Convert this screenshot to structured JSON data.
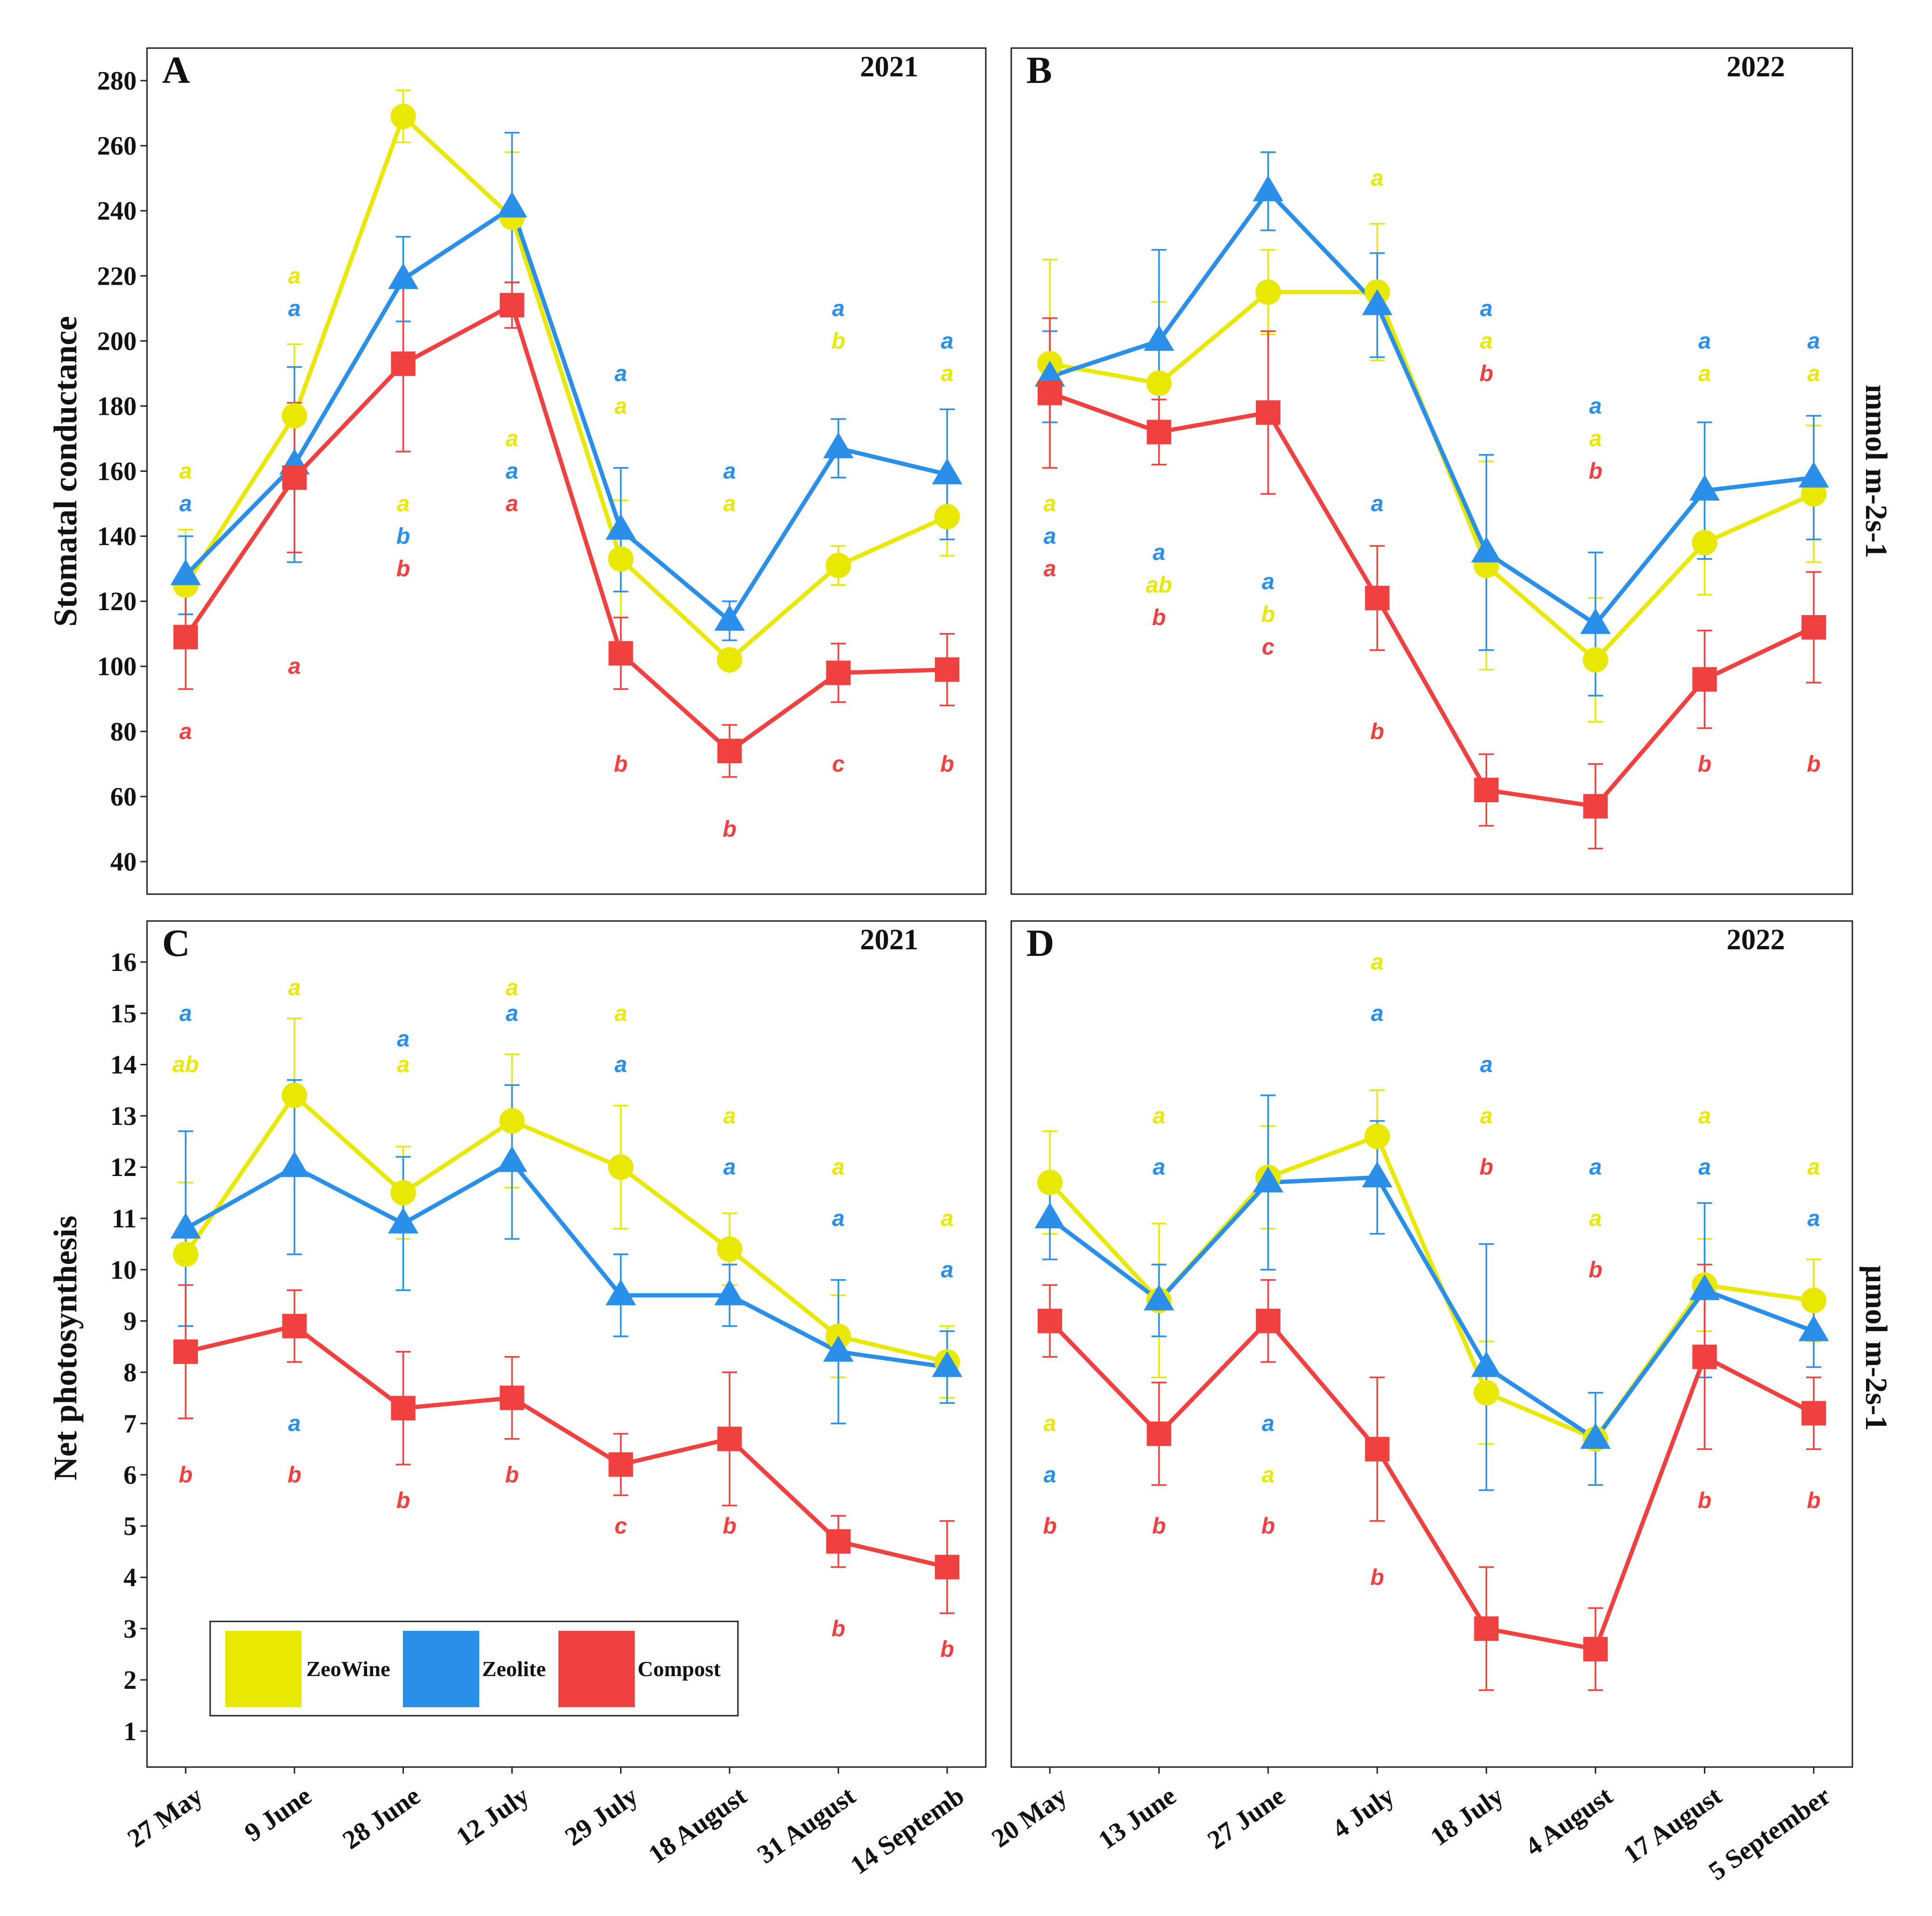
{
  "colors": {
    "ZeoWine": "#e8e800",
    "Zeolite": "#2a8fe8",
    "Compost": "#f04040"
  },
  "legend": [
    {
      "name": "ZeoWine",
      "color": "#e8e800"
    },
    {
      "name": "Zeolite",
      "color": "#2a8fe8"
    },
    {
      "name": "Compost",
      "color": "#f04040"
    }
  ],
  "labels": {
    "gs_ylabel": "Stomatal conductance",
    "gs_unit": "mmol m-2s-1",
    "pn_ylabel": "Net photosynthesis",
    "pn_unit": "µmol m-2s-1"
  },
  "chart_data": [
    {
      "type": "line",
      "panel": "A",
      "year": "2021",
      "categories": [
        "27 May",
        "9 June",
        "28 June",
        "12 July",
        "29 July",
        "18 August",
        "31 August",
        "14 Septemb"
      ],
      "ylim": [
        30,
        290
      ],
      "yticks": [
        40,
        60,
        80,
        100,
        120,
        140,
        160,
        180,
        200,
        220,
        240,
        260,
        280
      ],
      "series": [
        {
          "name": "ZeoWine",
          "values": [
            125,
            177,
            269,
            238,
            133,
            102,
            131,
            146
          ],
          "err": [
            17,
            22,
            8,
            20,
            18,
            3,
            6,
            12
          ]
        },
        {
          "name": "Zeolite",
          "values": [
            128,
            162,
            219,
            241,
            142,
            114,
            167,
            159
          ],
          "err": [
            12,
            30,
            13,
            23,
            19,
            6,
            9,
            20
          ]
        },
        {
          "name": "Compost",
          "values": [
            109,
            158,
            193,
            211,
            104,
            74,
            98,
            99
          ],
          "err": [
            16,
            23,
            27,
            7,
            11,
            8,
            9,
            11
          ]
        }
      ],
      "letters": [
        {
          "x": 0,
          "y": 160,
          "text": "a",
          "series": "ZeoWine"
        },
        {
          "x": 0,
          "y": 150,
          "text": "a",
          "series": "Zeolite"
        },
        {
          "x": 0,
          "y": 80,
          "text": "a",
          "series": "Compost"
        },
        {
          "x": 1,
          "y": 220,
          "text": "a",
          "series": "ZeoWine"
        },
        {
          "x": 1,
          "y": 210,
          "text": "a",
          "series": "Zeolite"
        },
        {
          "x": 1,
          "y": 100,
          "text": "a",
          "series": "Compost"
        },
        {
          "x": 2,
          "y": 150,
          "text": "a",
          "series": "ZeoWine"
        },
        {
          "x": 2,
          "y": 140,
          "text": "b",
          "series": "Zeolite"
        },
        {
          "x": 2,
          "y": 130,
          "text": "b",
          "series": "Compost"
        },
        {
          "x": 3,
          "y": 170,
          "text": "a",
          "series": "ZeoWine"
        },
        {
          "x": 3,
          "y": 160,
          "text": "a",
          "series": "Zeolite"
        },
        {
          "x": 3,
          "y": 150,
          "text": "a",
          "series": "Compost"
        },
        {
          "x": 4,
          "y": 180,
          "text": "a",
          "series": "ZeoWine"
        },
        {
          "x": 4,
          "y": 190,
          "text": "a",
          "series": "Zeolite"
        },
        {
          "x": 4,
          "y": 70,
          "text": "b",
          "series": "Compost"
        },
        {
          "x": 5,
          "y": 150,
          "text": "a",
          "series": "ZeoWine"
        },
        {
          "x": 5,
          "y": 160,
          "text": "a",
          "series": "Zeolite"
        },
        {
          "x": 5,
          "y": 50,
          "text": "b",
          "series": "Compost"
        },
        {
          "x": 6,
          "y": 200,
          "text": "b",
          "series": "ZeoWine"
        },
        {
          "x": 6,
          "y": 210,
          "text": "a",
          "series": "Zeolite"
        },
        {
          "x": 6,
          "y": 70,
          "text": "c",
          "series": "Compost"
        },
        {
          "x": 7,
          "y": 190,
          "text": "a",
          "series": "ZeoWine"
        },
        {
          "x": 7,
          "y": 200,
          "text": "a",
          "series": "Zeolite"
        },
        {
          "x": 7,
          "y": 70,
          "text": "b",
          "series": "Compost"
        }
      ]
    },
    {
      "type": "line",
      "panel": "B",
      "year": "2022",
      "categories": [
        "20 May",
        "13 June",
        "27 June",
        "4 July",
        "18 July",
        "4 August",
        "17 August",
        "5 September"
      ],
      "ylim": [
        30,
        290
      ],
      "yticks": [],
      "series": [
        {
          "name": "ZeoWine",
          "values": [
            193,
            187,
            215,
            215,
            131,
            102,
            138,
            153
          ],
          "err": [
            32,
            25,
            13,
            21,
            32,
            19,
            16,
            21
          ]
        },
        {
          "name": "Zeolite",
          "values": [
            189,
            200,
            246,
            211,
            135,
            113,
            154,
            158
          ],
          "err": [
            14,
            28,
            12,
            16,
            30,
            22,
            21,
            19
          ]
        },
        {
          "name": "Compost",
          "values": [
            184,
            172,
            178,
            121,
            62,
            57,
            96,
            112
          ],
          "err": [
            23,
            10,
            25,
            16,
            11,
            13,
            15,
            17
          ]
        }
      ],
      "letters": [
        {
          "x": 0,
          "y": 150,
          "text": "a",
          "series": "ZeoWine"
        },
        {
          "x": 0,
          "y": 140,
          "text": "a",
          "series": "Zeolite"
        },
        {
          "x": 0,
          "y": 130,
          "text": "a",
          "series": "Compost"
        },
        {
          "x": 1,
          "y": 135,
          "text": "a",
          "series": "Zeolite"
        },
        {
          "x": 1,
          "y": 125,
          "text": "ab",
          "series": "ZeoWine"
        },
        {
          "x": 1,
          "y": 115,
          "text": "b",
          "series": "Compost"
        },
        {
          "x": 2,
          "y": 126,
          "text": "a",
          "series": "Zeolite"
        },
        {
          "x": 2,
          "y": 116,
          "text": "b",
          "series": "ZeoWine"
        },
        {
          "x": 2,
          "y": 106,
          "text": "c",
          "series": "Compost"
        },
        {
          "x": 3,
          "y": 250,
          "text": "a",
          "series": "ZeoWine"
        },
        {
          "x": 3,
          "y": 150,
          "text": "a",
          "series": "Zeolite"
        },
        {
          "x": 3,
          "y": 80,
          "text": "b",
          "series": "Compost"
        },
        {
          "x": 4,
          "y": 210,
          "text": "a",
          "series": "Zeolite"
        },
        {
          "x": 4,
          "y": 200,
          "text": "a",
          "series": "ZeoWine"
        },
        {
          "x": 4,
          "y": 190,
          "text": "b",
          "series": "Compost"
        },
        {
          "x": 5,
          "y": 180,
          "text": "a",
          "series": "Zeolite"
        },
        {
          "x": 5,
          "y": 170,
          "text": "a",
          "series": "ZeoWine"
        },
        {
          "x": 5,
          "y": 160,
          "text": "b",
          "series": "Compost"
        },
        {
          "x": 6,
          "y": 200,
          "text": "a",
          "series": "Zeolite"
        },
        {
          "x": 6,
          "y": 190,
          "text": "a",
          "series": "ZeoWine"
        },
        {
          "x": 6,
          "y": 70,
          "text": "b",
          "series": "Compost"
        },
        {
          "x": 7,
          "y": 200,
          "text": "a",
          "series": "Zeolite"
        },
        {
          "x": 7,
          "y": 190,
          "text": "a",
          "series": "ZeoWine"
        },
        {
          "x": 7,
          "y": 70,
          "text": "b",
          "series": "Compost"
        }
      ]
    },
    {
      "type": "line",
      "panel": "C",
      "year": "2021",
      "categories": [
        "27 May",
        "9 June",
        "28 June",
        "12 July",
        "29 July",
        "18 August",
        "31 August",
        "14 Septemb"
      ],
      "ylim": [
        0.3,
        16.8
      ],
      "yticks": [
        1,
        2,
        3,
        4,
        5,
        6,
        7,
        8,
        9,
        10,
        11,
        12,
        13,
        14,
        15,
        16
      ],
      "series": [
        {
          "name": "ZeoWine",
          "values": [
            10.3,
            13.4,
            11.5,
            12.9,
            12.0,
            10.4,
            8.7,
            8.2
          ],
          "err": [
            1.4,
            1.5,
            0.9,
            1.3,
            1.2,
            0.7,
            0.8,
            0.7
          ]
        },
        {
          "name": "Zeolite",
          "values": [
            10.8,
            12.0,
            10.9,
            12.1,
            9.5,
            9.5,
            8.4,
            8.1
          ],
          "err": [
            1.9,
            1.7,
            1.3,
            1.5,
            0.8,
            0.6,
            1.4,
            0.7
          ]
        },
        {
          "name": "Compost",
          "values": [
            8.4,
            8.9,
            7.3,
            7.5,
            6.2,
            6.7,
            4.7,
            4.2
          ],
          "err": [
            1.3,
            0.7,
            1.1,
            0.8,
            0.6,
            1.3,
            0.5,
            0.9
          ]
        }
      ],
      "letters": [
        {
          "x": 0,
          "y": 15,
          "text": "a",
          "series": "Zeolite"
        },
        {
          "x": 0,
          "y": 14,
          "text": "ab",
          "series": "ZeoWine"
        },
        {
          "x": 0,
          "y": 6,
          "text": "b",
          "series": "Compost"
        },
        {
          "x": 1,
          "y": 15.5,
          "text": "a",
          "series": "ZeoWine"
        },
        {
          "x": 1,
          "y": 7,
          "text": "a",
          "series": "Zeolite"
        },
        {
          "x": 1,
          "y": 6,
          "text": "b",
          "series": "Compost"
        },
        {
          "x": 2,
          "y": 14.5,
          "text": "a",
          "series": "Zeolite"
        },
        {
          "x": 2,
          "y": 14,
          "text": "a",
          "series": "ZeoWine"
        },
        {
          "x": 2,
          "y": 5.5,
          "text": "b",
          "series": "Compost"
        },
        {
          "x": 3,
          "y": 15.5,
          "text": "a",
          "series": "ZeoWine"
        },
        {
          "x": 3,
          "y": 15,
          "text": "a",
          "series": "Zeolite"
        },
        {
          "x": 3,
          "y": 6,
          "text": "b",
          "series": "Compost"
        },
        {
          "x": 4,
          "y": 15,
          "text": "a",
          "series": "ZeoWine"
        },
        {
          "x": 4,
          "y": 14,
          "text": "a",
          "series": "Zeolite"
        },
        {
          "x": 4,
          "y": 5,
          "text": "c",
          "series": "Compost"
        },
        {
          "x": 5,
          "y": 13,
          "text": "a",
          "series": "ZeoWine"
        },
        {
          "x": 5,
          "y": 12,
          "text": "a",
          "series": "Zeolite"
        },
        {
          "x": 5,
          "y": 5,
          "text": "b",
          "series": "Compost"
        },
        {
          "x": 6,
          "y": 12,
          "text": "a",
          "series": "ZeoWine"
        },
        {
          "x": 6,
          "y": 11,
          "text": "a",
          "series": "Zeolite"
        },
        {
          "x": 6,
          "y": 3,
          "text": "b",
          "series": "Compost"
        },
        {
          "x": 7,
          "y": 11,
          "text": "a",
          "series": "ZeoWine"
        },
        {
          "x": 7,
          "y": 10,
          "text": "a",
          "series": "Zeolite"
        },
        {
          "x": 7,
          "y": 2.6,
          "text": "b",
          "series": "Compost"
        }
      ]
    },
    {
      "type": "line",
      "panel": "D",
      "year": "2022",
      "categories": [
        "20 May",
        "13 June",
        "27 June",
        "4 July",
        "18 July",
        "4 August",
        "17 August",
        "5 September"
      ],
      "ylim": [
        0.3,
        16.8
      ],
      "yticks": [],
      "series": [
        {
          "name": "ZeoWine",
          "values": [
            11.7,
            9.4,
            11.8,
            12.6,
            7.6,
            6.7,
            9.7,
            9.4
          ],
          "err": [
            1.0,
            1.5,
            1.0,
            0.9,
            1.0,
            0.9,
            0.9,
            0.8
          ]
        },
        {
          "name": "Zeolite",
          "values": [
            11.0,
            9.4,
            11.7,
            11.8,
            8.1,
            6.7,
            9.6,
            8.8
          ],
          "err": [
            0.8,
            0.7,
            1.7,
            1.1,
            2.4,
            0.9,
            1.7,
            0.7
          ]
        },
        {
          "name": "Compost",
          "values": [
            9.0,
            6.8,
            9.0,
            6.5,
            3.0,
            2.6,
            8.3,
            7.2
          ],
          "err": [
            0.7,
            1.0,
            0.8,
            1.4,
            1.2,
            0.8,
            1.8,
            0.7
          ]
        }
      ],
      "letters": [
        {
          "x": 0,
          "y": 7,
          "text": "a",
          "series": "ZeoWine"
        },
        {
          "x": 0,
          "y": 6,
          "text": "a",
          "series": "Zeolite"
        },
        {
          "x": 0,
          "y": 5,
          "text": "b",
          "series": "Compost"
        },
        {
          "x": 1,
          "y": 13,
          "text": "a",
          "series": "ZeoWine"
        },
        {
          "x": 1,
          "y": 12,
          "text": "a",
          "series": "Zeolite"
        },
        {
          "x": 1,
          "y": 5,
          "text": "b",
          "series": "Compost"
        },
        {
          "x": 2,
          "y": 7,
          "text": "a",
          "series": "Zeolite"
        },
        {
          "x": 2,
          "y": 6,
          "text": "a",
          "series": "ZeoWine"
        },
        {
          "x": 2,
          "y": 5,
          "text": "b",
          "series": "Compost"
        },
        {
          "x": 3,
          "y": 16,
          "text": "a",
          "series": "ZeoWine"
        },
        {
          "x": 3,
          "y": 15,
          "text": "a",
          "series": "Zeolite"
        },
        {
          "x": 3,
          "y": 4,
          "text": "b",
          "series": "Compost"
        },
        {
          "x": 4,
          "y": 14,
          "text": "a",
          "series": "Zeolite"
        },
        {
          "x": 4,
          "y": 13,
          "text": "a",
          "series": "ZeoWine"
        },
        {
          "x": 4,
          "y": 12,
          "text": "b",
          "series": "Compost"
        },
        {
          "x": 5,
          "y": 12,
          "text": "a",
          "series": "Zeolite"
        },
        {
          "x": 5,
          "y": 11,
          "text": "a",
          "series": "ZeoWine"
        },
        {
          "x": 5,
          "y": 10,
          "text": "b",
          "series": "Compost"
        },
        {
          "x": 6,
          "y": 13,
          "text": "a",
          "series": "ZeoWine"
        },
        {
          "x": 6,
          "y": 12,
          "text": "a",
          "series": "Zeolite"
        },
        {
          "x": 6,
          "y": 5.5,
          "text": "b",
          "series": "Compost"
        },
        {
          "x": 7,
          "y": 12,
          "text": "a",
          "series": "ZeoWine"
        },
        {
          "x": 7,
          "y": 11,
          "text": "a",
          "series": "Zeolite"
        },
        {
          "x": 7,
          "y": 5.5,
          "text": "b",
          "series": "Compost"
        }
      ]
    }
  ]
}
